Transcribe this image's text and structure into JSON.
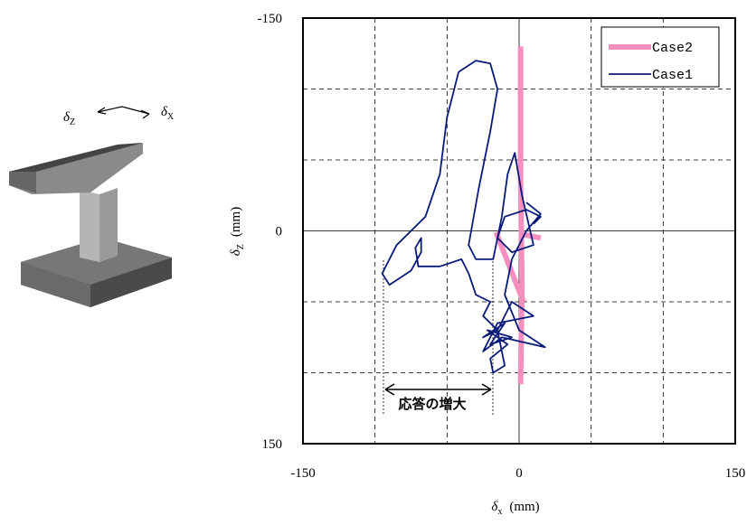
{
  "chart_data": {
    "type": "line",
    "xlim": [
      -150,
      150
    ],
    "ylim": [
      -150,
      150
    ],
    "y_inverted": true,
    "xticks": [
      -150,
      0,
      150
    ],
    "yticks": [
      -150,
      0,
      150
    ],
    "xgrid": [
      -100,
      -50,
      50,
      100
    ],
    "ygrid": [
      -100,
      -50,
      50,
      100
    ],
    "grid": true,
    "x_label": {
      "symbol": "δ",
      "sub": "x",
      "unit": "(mm)"
    },
    "y_label": {
      "symbol": "δ",
      "sub": "Z",
      "unit": "(mm)"
    },
    "legend": "upper right",
    "annotation": "応答の増大",
    "illustration": {
      "z_symbol": "δ",
      "z_sub": "Z",
      "x_symbol": "δ",
      "x_sub": "X"
    },
    "series": [
      {
        "name": "Case2",
        "color": "#f48fc0",
        "width": 6,
        "x": [
          1,
          1,
          2,
          1,
          null,
          0,
          15,
          null,
          -16,
          3
        ],
        "values": [
          -130,
          -40,
          40,
          108,
          null,
          2,
          5,
          null,
          1,
          50
        ]
      },
      {
        "name": "Case1",
        "color": "#0a1a7a",
        "width": 1.8,
        "x": [
          10,
          15,
          5,
          -10,
          -15,
          -5,
          10,
          2,
          -3,
          -8,
          -12,
          -18,
          -30,
          -35,
          -28,
          -20,
          -15,
          -20,
          -30,
          -42,
          -50,
          -55,
          -65,
          -85,
          -95,
          -90,
          -75,
          -68,
          -68,
          -72,
          -70,
          -55,
          -40,
          -35,
          -30,
          -20,
          -25,
          -15,
          -25,
          -10,
          -20,
          -5,
          -22,
          -8,
          -20,
          -18,
          -10,
          -15,
          -5,
          10,
          -15,
          -25,
          -12,
          18,
          0,
          -10,
          -5,
          5,
          15,
          5
        ],
        "values": [
          -5,
          -10,
          -15,
          -10,
          5,
          15,
          10,
          -25,
          -55,
          -40,
          -10,
          20,
          20,
          10,
          -30,
          -70,
          -100,
          -118,
          -120,
          -112,
          -80,
          -40,
          -10,
          10,
          30,
          38,
          28,
          15,
          5,
          12,
          25,
          25,
          20,
          30,
          45,
          50,
          60,
          70,
          75,
          65,
          80,
          75,
          70,
          80,
          90,
          100,
          95,
          70,
          50,
          60,
          65,
          85,
          75,
          82,
          70,
          45,
          20,
          0,
          -12,
          -20
        ]
      }
    ]
  }
}
